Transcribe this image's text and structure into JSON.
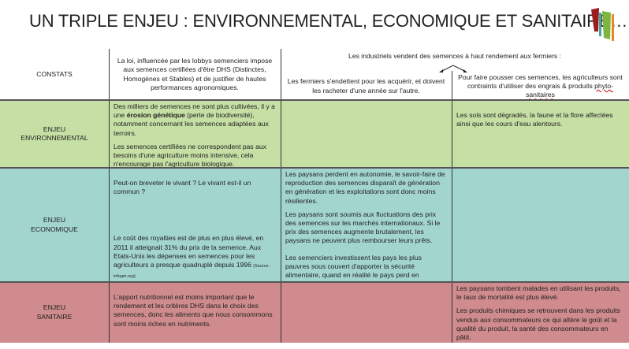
{
  "title": "UN TRIPLE ENJEU : ENVIRONNEMENTAL, ECONOMIQUE ET SANITAIRE…",
  "logo_colors": [
    "#9b1c1c",
    "#4aa3a0",
    "#7fb43f",
    "#e38b1e"
  ],
  "header": {
    "constats": "CONSTATS",
    "col1": "La loi, influencée par les lobbys semenciers impose aux semences certifiées d'être DHS (Distinctes, Homogènes et Stables) et de justifier de hautes performances agronomiques.",
    "span": "Les industriels vendent des semences à haut rendement aux fermiers :",
    "col2": "Les fermiers s'endettent pour les acquérir, et doivent les racheter d'une année sur l'autre.",
    "col3_a": "Pour faire pousser ces semences, les agriculteurs sont contraints d'utiliser des engrais & produits ",
    "col3_b": "phyto-sanitaires"
  },
  "rows": {
    "env": {
      "label_1": "ENJEU",
      "label_2": "ENVIRONNEMENTAL",
      "color": "#c5dfa5",
      "c1_p1_a": "Des milliers de semences ne sont plus cultivées, il y a une ",
      "c1_p1_bold": "érosion génétique",
      "c1_p1_b": " (perte de biodiversité), notamment concernant les semences adaptées aux terroirs.",
      "c1_p2": "Les semences certifiées ne correspondent pas aux besoins d'une agriculture moins intensive, cela n'encourage pas l'agriculture biologique.",
      "c3_p1": "Les sols sont dégradés, la faune et la flore affectées ainsi que les cours d'eau alentours."
    },
    "eco": {
      "label_1": "ENJEU",
      "label_2": "ECONOMIQUE",
      "color": "#a3d5cf",
      "c1_p1": "Peut-on breveter le vivant ? Le vivant est-il un commun ?",
      "c1_p2": "Le coût des royalties est de plus en plus élevé, en 2011 il atteignait 31% du prix de la semence. Aux Etats-Unis les dépenses en semences pour les agriculteurs a presque quadruplé depuis 1996 ",
      "c1_source": "(Source : infogm.org).",
      "c2_p1": "Les paysans perdent en autonomie, le savoir-faire de reproduction des semences disparaît de génération en génération et les exploitations sont donc moins résilientes.",
      "c2_p2": "Les paysans sont soumis aux fluctuations des prix des semences sur les marchés internationaux. Si le prix des semences augmente brutalement, les paysans ne peuvent plus rembourser leurs prêts.",
      "c2_p3": "Les semenciers investissent les pays les plus pauvres sous couvert d'apporter la sécurité alimentaire, quand en réalité le pays perd en souveraineté alimentaire."
    },
    "san": {
      "label_1": "ENJEU",
      "label_2": "SANITAIRE",
      "color": "#cf8b8d",
      "c1_p1": "L'apport nutritionnel est moins important que le rendement et les critères DHS dans le choix des semences, donc les aliments que nous consommons sont moins riches en nutriments.",
      "c3_p1": "Les paysans tombent malades en utilisant les produits, le taux de mortalité est plus élevé.",
      "c3_p2": "Les produits chimiques se retrouvent dans les produits vendus aux consommateurs ce qui altère le goût et la qualité du produit, la santé des consommateurs en pâtit."
    }
  }
}
